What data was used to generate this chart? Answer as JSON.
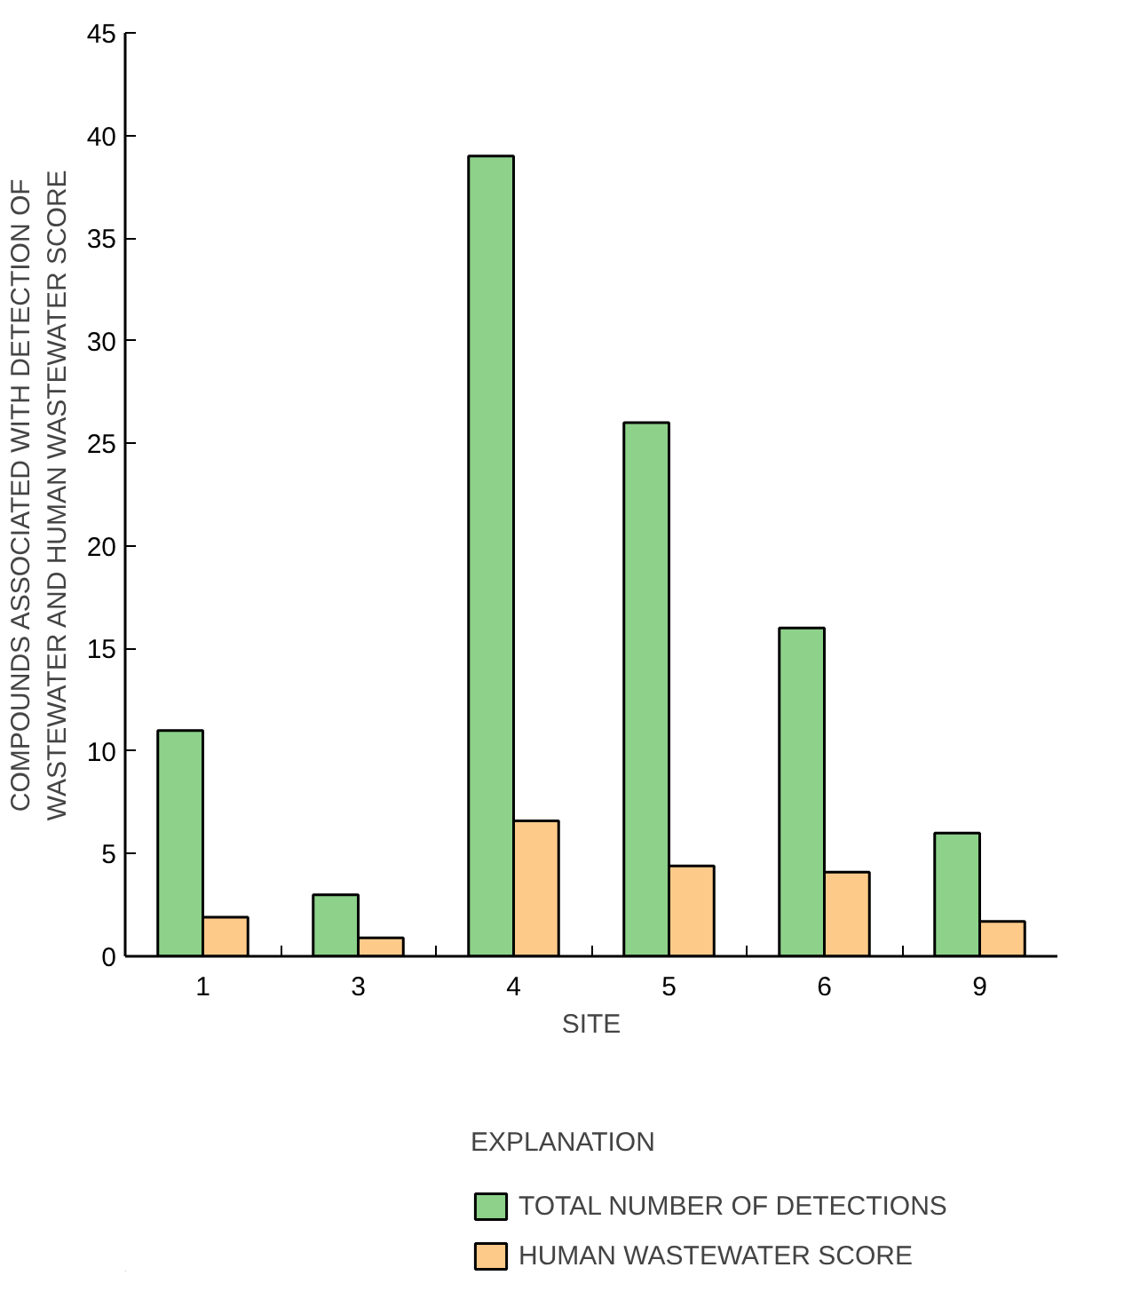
{
  "chart_data": {
    "type": "bar",
    "xlabel": "SITE",
    "ylabel": "COMPOUNDS ASSOCIATED WITH DETECTION OF\nWASTEWATER AND HUMAN WASTEWATER SCORE",
    "legend_title": "EXPLANATION",
    "categories": [
      "1",
      "3",
      "4",
      "5",
      "6",
      "9"
    ],
    "series": [
      {
        "name": "TOTAL NUMBER OF DETECTIONS",
        "color": "#8dd18a",
        "values": [
          11,
          3,
          39,
          26,
          16,
          6
        ]
      },
      {
        "name": "HUMAN WASTEWATER SCORE",
        "color": "#fdca8a",
        "values": [
          1.9,
          0.9,
          6.6,
          4.4,
          4.1,
          1.7
        ]
      }
    ],
    "ylim": [
      0,
      45
    ],
    "yticks": [
      0,
      5,
      10,
      15,
      20,
      25,
      30,
      35,
      40,
      45
    ],
    "grid": false,
    "legend": "bottom"
  }
}
